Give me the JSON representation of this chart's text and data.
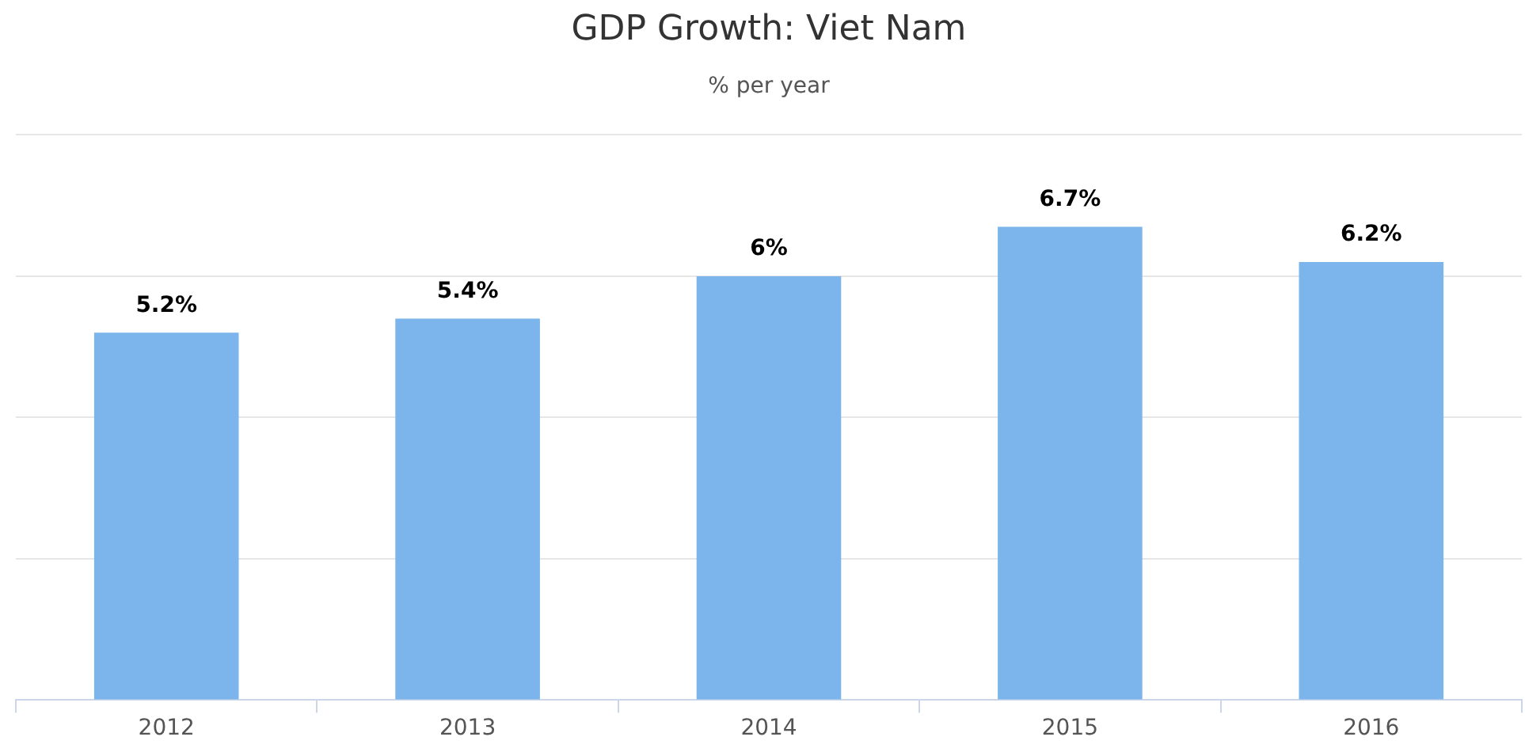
{
  "chart_data": {
    "type": "bar",
    "title": "GDP Growth: Viet Nam",
    "subtitle": "% per year",
    "categories": [
      "2012",
      "2013",
      "2014",
      "2015",
      "2016"
    ],
    "values": [
      5.2,
      5.4,
      6,
      6.7,
      6.2
    ],
    "value_labels": [
      "5.2%",
      "5.4%",
      "6%",
      "6.7%",
      "6.2%"
    ],
    "color": "#7cb5ec",
    "ylim": [
      0,
      8
    ],
    "yticks": [
      {
        "value": 0,
        "label": null
      },
      {
        "value": 2,
        "label": null
      },
      {
        "value": 4,
        "label": null
      },
      {
        "value": 6,
        "label": null
      },
      {
        "value": 8,
        "label": null
      }
    ],
    "tick_labels": "x",
    "grid": "y",
    "legend": false
  }
}
